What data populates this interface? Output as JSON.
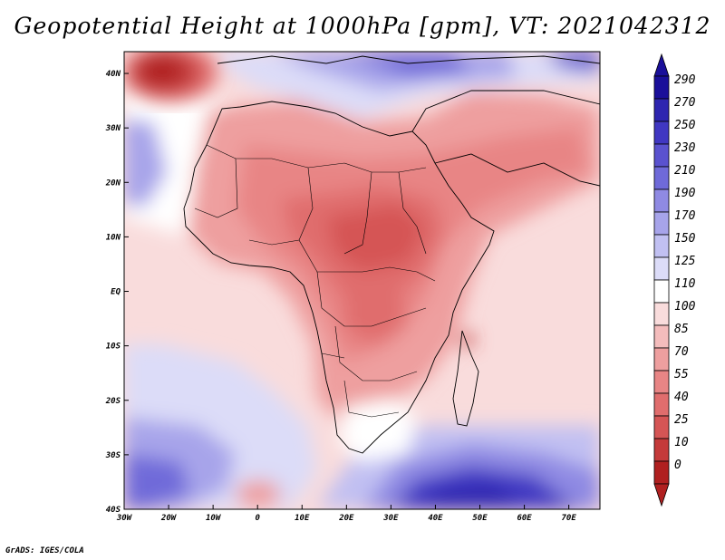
{
  "title": "Geopotential Height at 1000hPa [gpm], VT: 2021042312",
  "credit": "GrADS: IGES/COLA",
  "colorbar": {
    "levels": [
      "290",
      "270",
      "250",
      "230",
      "210",
      "190",
      "170",
      "150",
      "125",
      "110",
      "100",
      "85",
      "70",
      "55",
      "40",
      "25",
      "10",
      "0"
    ],
    "colors": [
      "#1a0f9a",
      "#2e26b0",
      "#4037c2",
      "#5a52cf",
      "#6f6ad9",
      "#8f8ae3",
      "#a7a4ea",
      "#c1c0f2",
      "#dcdcf8",
      "#ffffff",
      "#f9dcdc",
      "#f4bcbc",
      "#ee9f9f",
      "#e88585",
      "#e06d6d",
      "#d55555",
      "#c43a3a",
      "#b02020"
    ]
  },
  "axes": {
    "lon_labels": [
      "30W",
      "20W",
      "10W",
      "0",
      "10E",
      "20E",
      "30E",
      "40E",
      "50E",
      "60E",
      "70E"
    ],
    "lat_labels": [
      "40N",
      "30N",
      "20N",
      "10N",
      "EQ",
      "10S",
      "20S",
      "30S",
      "40S"
    ]
  },
  "map_data": {
    "type": "filled-contour",
    "variable": "Geopotential Height at 1000hPa",
    "units": "gpm",
    "valid_time": "2021042312",
    "lon_range": [
      -30,
      77
    ],
    "lat_range": [
      -40,
      44
    ],
    "features": [
      {
        "name": "low-north-atlantic",
        "lon": -23,
        "lat": 40,
        "value_range": [
          0,
          25
        ]
      },
      {
        "name": "high-southern-indian-ocean",
        "lon": 43,
        "lat": -37,
        "value_range": [
          250,
          290
        ]
      },
      {
        "name": "high-southern-atlantic",
        "lon": -25,
        "lat": -33,
        "value_range": [
          190,
          230
        ]
      },
      {
        "name": "high-mediterranean",
        "lon": 28,
        "lat": 40,
        "value_range": [
          150,
          190
        ]
      }
    ]
  }
}
